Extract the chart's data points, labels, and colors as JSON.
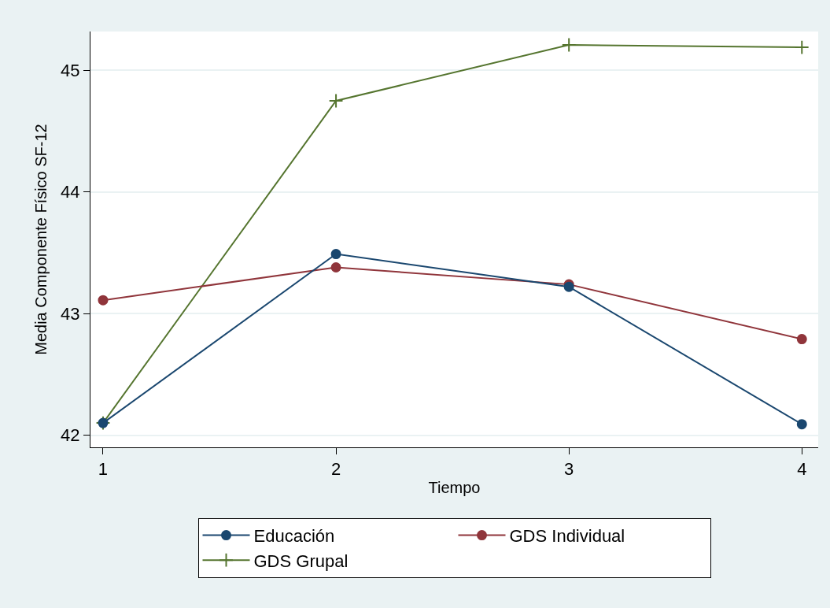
{
  "chart_data": {
    "type": "line",
    "xlabel": "Tiempo",
    "ylabel": "Media Componente Físico SF-12",
    "x": [
      1,
      2,
      3,
      4
    ],
    "xlim": [
      0.946,
      4.07
    ],
    "xticks": [
      1,
      2,
      3,
      4
    ],
    "ylim": [
      41.9,
      45.32
    ],
    "yticks": [
      42,
      43,
      44,
      45
    ],
    "series": [
      {
        "name": "Educación",
        "color": "#1a476f",
        "marker": "circle",
        "values": [
          42.1,
          43.49,
          43.22,
          42.09
        ]
      },
      {
        "name": "GDS Individual",
        "color": "#90353b",
        "marker": "circle",
        "values": [
          43.11,
          43.38,
          43.24,
          42.79
        ]
      },
      {
        "name": "GDS Grupal",
        "color": "#55752f",
        "marker": "cross",
        "values": [
          42.1,
          44.75,
          45.21,
          45.19
        ]
      }
    ],
    "grid": "y",
    "legend": "bottom",
    "line_style": "solid"
  }
}
